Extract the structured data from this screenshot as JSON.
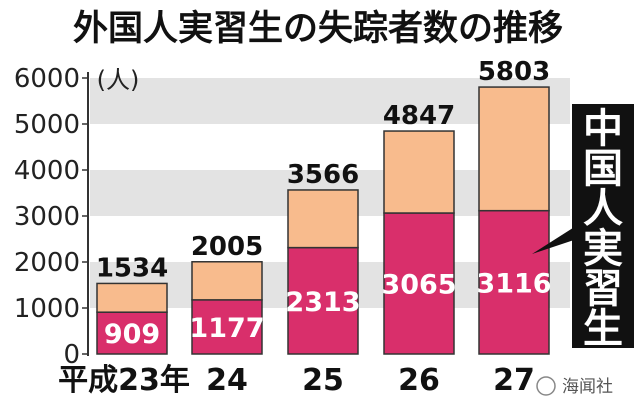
{
  "title": "外国人実習生の失踪者数の推移",
  "unit_label": "(人)",
  "callout_label": "中国人実習生",
  "watermark": "海闻社",
  "colors": {
    "china": "#d92f6b",
    "other": "#f8bb8d",
    "band": "#e3e3e3",
    "callout": "#111111"
  },
  "chart_data": {
    "type": "bar",
    "title": "外国人実習生の失踪者数の推移",
    "ylabel": "(人)",
    "categories": [
      "平成23年",
      "24",
      "25",
      "26",
      "27"
    ],
    "ylim": [
      0,
      6000
    ],
    "yticks": [
      0,
      1000,
      2000,
      3000,
      4000,
      5000,
      6000
    ],
    "ytick_labels": [
      "0",
      "1000",
      "2000",
      "3000",
      "4000",
      "5000",
      "6000"
    ],
    "stacked": true,
    "series": [
      {
        "name": "中国人実習生",
        "values": [
          909,
          1177,
          2313,
          3065,
          3116
        ]
      },
      {
        "values": [
          625,
          828,
          1253,
          1782,
          2687
        ]
      }
    ],
    "totals": [
      1534,
      2005,
      3566,
      4847,
      5803
    ],
    "total_labels": [
      "1534",
      "2005",
      "3566",
      "4847",
      "5803"
    ],
    "china_labels": [
      "909",
      "1177",
      "2313",
      "3065",
      "3116"
    ]
  }
}
